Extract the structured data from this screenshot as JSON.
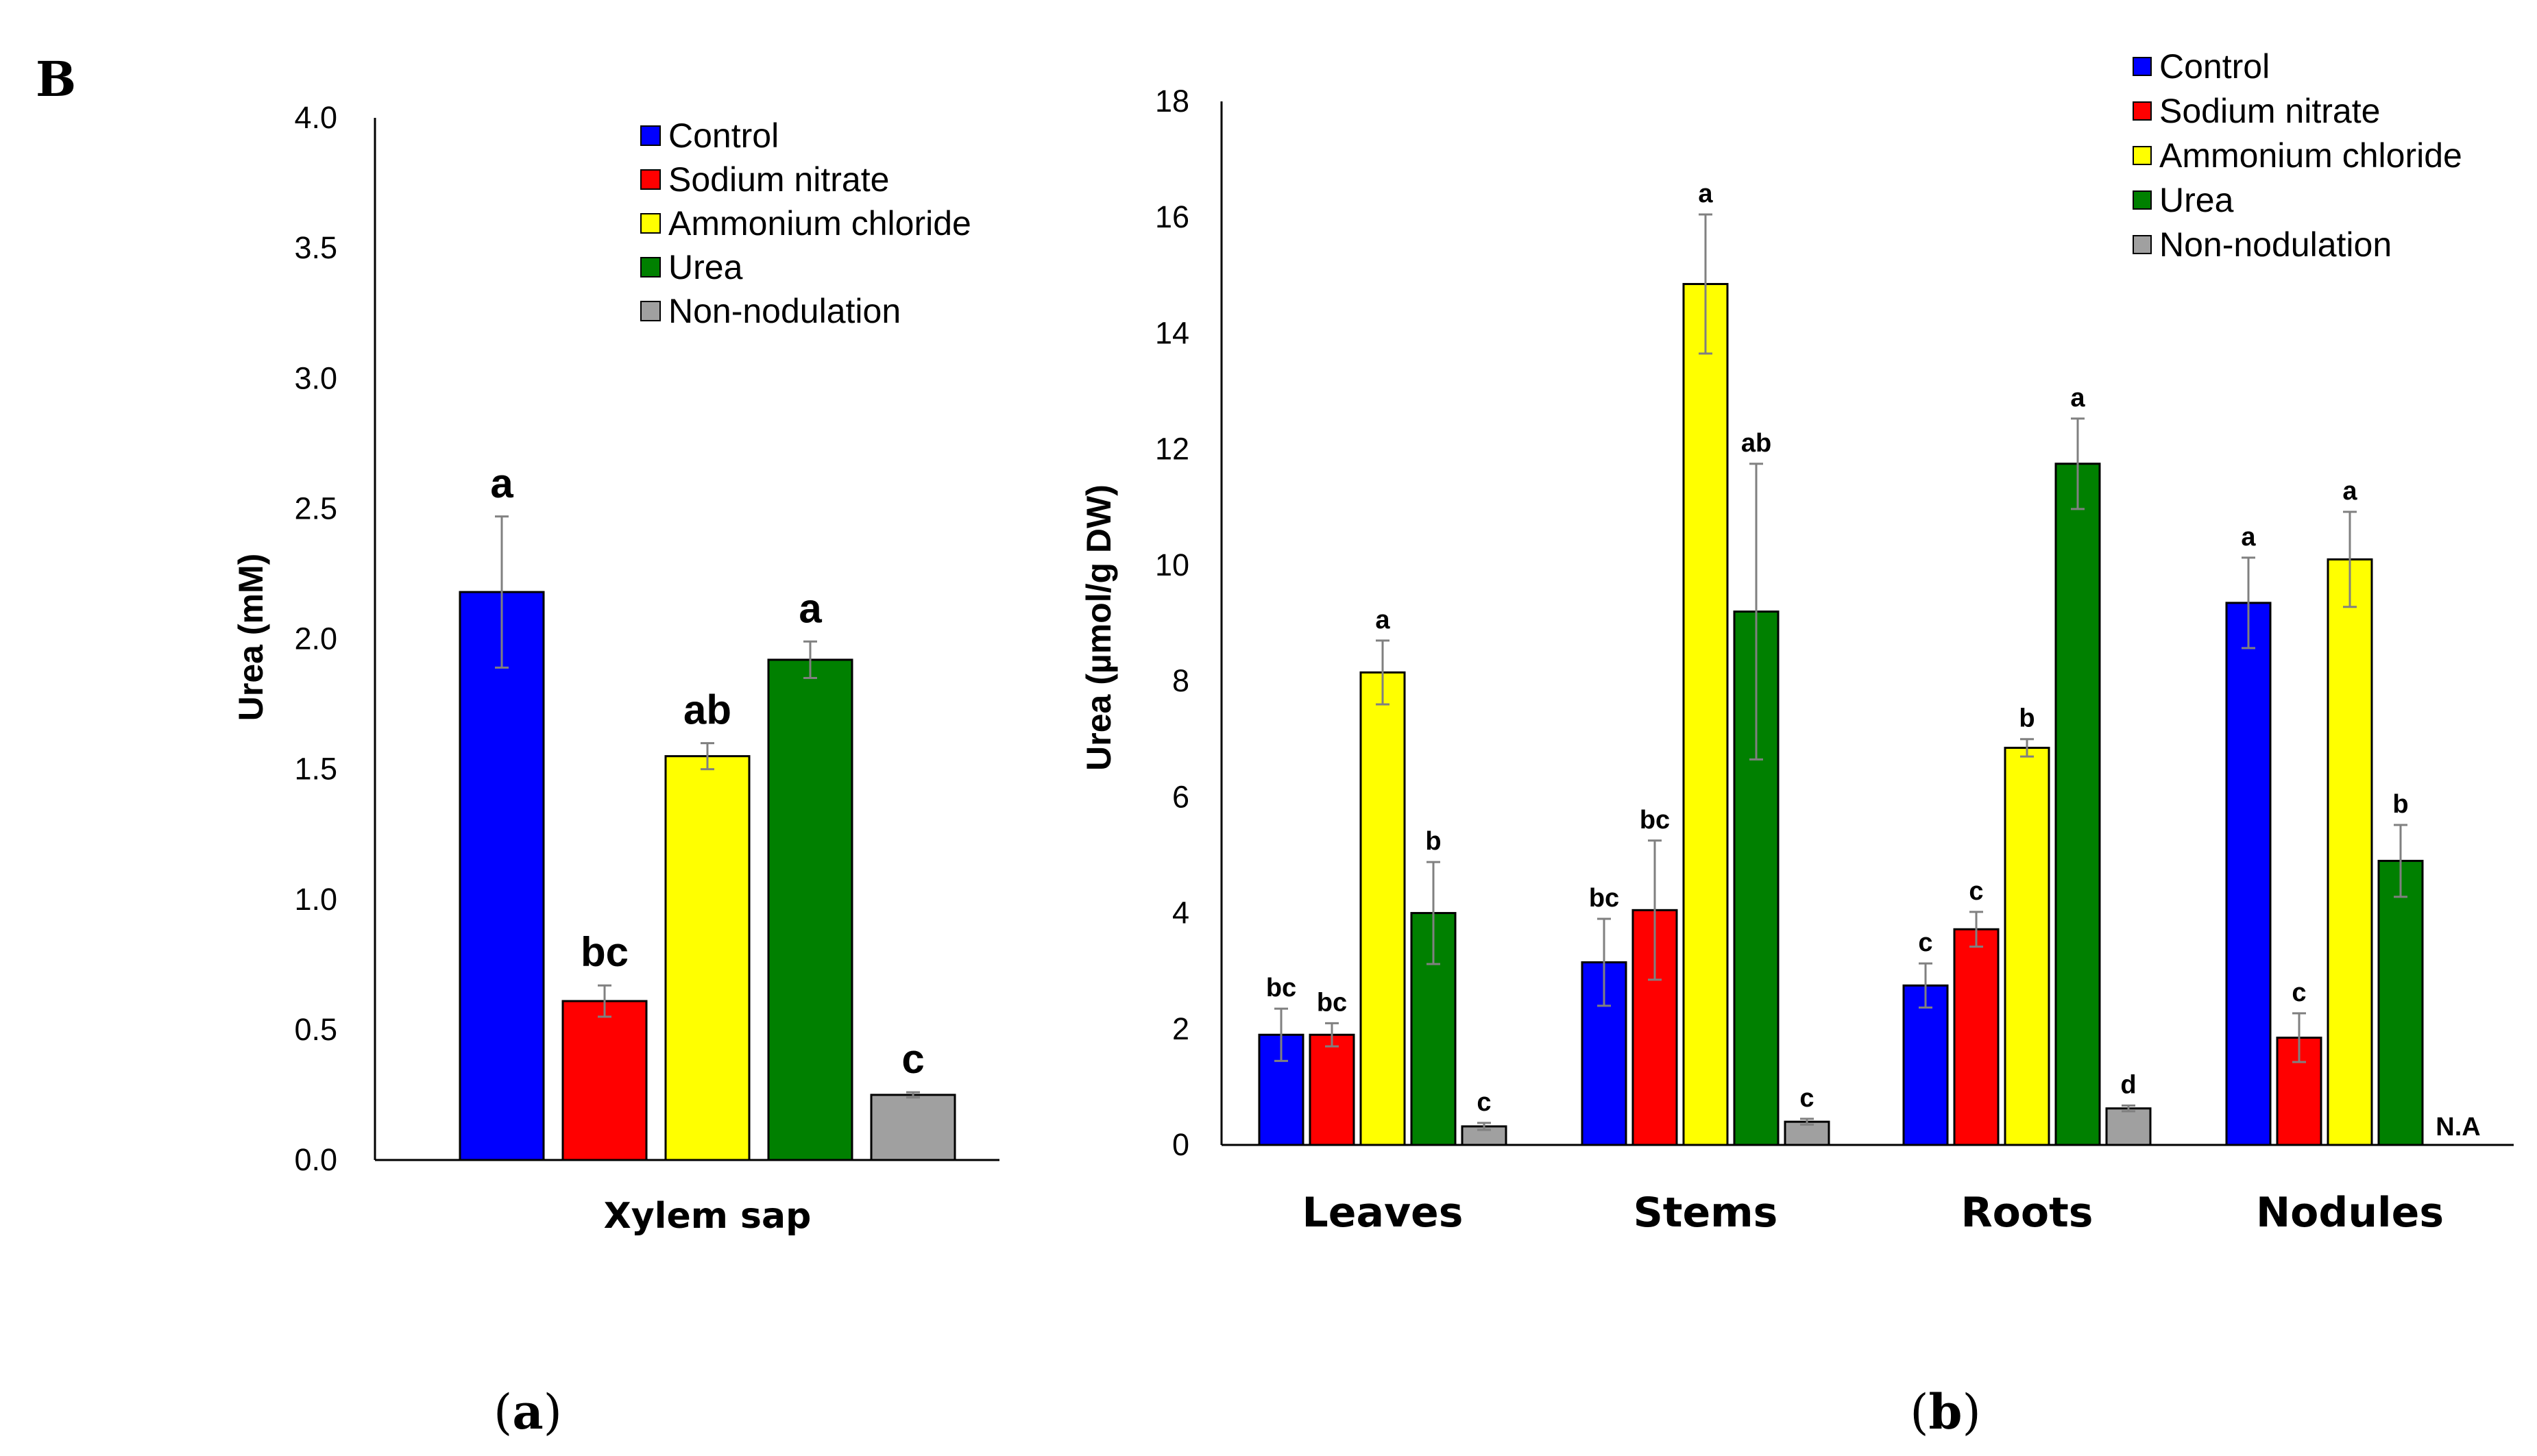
{
  "figure_label": "B",
  "subfigure_labels": {
    "a": {
      "open": "(",
      "letter": "a",
      "close": ")"
    },
    "b": {
      "open": "(",
      "letter": "b",
      "close": ")"
    }
  },
  "legend": [
    {
      "name": "Control",
      "color": "#0000FF"
    },
    {
      "name": "Sodium nitrate",
      "color": "#FF0000"
    },
    {
      "name": "Ammonium chloride",
      "color": "#FFFF00"
    },
    {
      "name": "Urea",
      "color": "#008000"
    },
    {
      "name": "Non-nodulation",
      "color": "#A0A0A0"
    }
  ],
  "chart_data": [
    {
      "id": "a",
      "type": "bar",
      "ylabel": "Urea (mM)",
      "xlabel": "",
      "ylim": [
        0,
        4.0
      ],
      "yticks": [
        "0.0",
        "0.5",
        "1.0",
        "1.5",
        "2.0",
        "2.5",
        "3.0",
        "3.5",
        "4.0"
      ],
      "categories": [
        "Xylem sap"
      ],
      "series": [
        {
          "name": "Control",
          "values": [
            2.18
          ],
          "errors": [
            0.29
          ],
          "labels": [
            "a"
          ]
        },
        {
          "name": "Sodium nitrate",
          "values": [
            0.61
          ],
          "errors": [
            0.06
          ],
          "labels": [
            "bc"
          ]
        },
        {
          "name": "Ammonium chloride",
          "values": [
            1.55
          ],
          "errors": [
            0.05
          ],
          "labels": [
            "ab"
          ]
        },
        {
          "name": "Urea",
          "values": [
            1.92
          ],
          "errors": [
            0.07
          ],
          "labels": [
            "a"
          ]
        },
        {
          "name": "Non-nodulation",
          "values": [
            0.25
          ],
          "errors": [
            0.01
          ],
          "labels": [
            "c"
          ]
        }
      ]
    },
    {
      "id": "b",
      "type": "bar",
      "ylabel": "Urea (µmol/g DW)",
      "xlabel": "",
      "ylim": [
        0,
        18
      ],
      "yticks": [
        "0",
        "2",
        "4",
        "6",
        "8",
        "10",
        "12",
        "14",
        "16",
        "18"
      ],
      "categories": [
        "Leaves",
        "Stems",
        "Roots",
        "Nodules"
      ],
      "series": [
        {
          "name": "Control",
          "values": [
            1.9,
            3.15,
            2.75,
            9.35
          ],
          "errors": [
            0.45,
            0.75,
            0.38,
            0.78
          ],
          "labels": [
            "bc",
            "bc",
            "c",
            "a"
          ]
        },
        {
          "name": "Sodium nitrate",
          "values": [
            1.9,
            4.05,
            3.72,
            1.85
          ],
          "errors": [
            0.2,
            1.2,
            0.3,
            0.42
          ],
          "labels": [
            "bc",
            "bc",
            "c",
            "c"
          ]
        },
        {
          "name": "Ammonium chloride",
          "values": [
            8.15,
            14.85,
            6.85,
            10.1
          ],
          "errors": [
            0.55,
            1.2,
            0.15,
            0.82
          ],
          "labels": [
            "a",
            "a",
            "b",
            "a"
          ]
        },
        {
          "name": "Urea",
          "values": [
            4.0,
            9.2,
            11.75,
            4.9
          ],
          "errors": [
            0.88,
            2.55,
            0.78,
            0.62
          ],
          "labels": [
            "b",
            "ab",
            "a",
            "b"
          ]
        },
        {
          "name": "Non-nodulation",
          "values": [
            0.32,
            0.4,
            0.63,
            null
          ],
          "errors": [
            0.06,
            0.05,
            0.05,
            null
          ],
          "labels": [
            "c",
            "c",
            "d",
            "N.A"
          ]
        }
      ]
    }
  ]
}
